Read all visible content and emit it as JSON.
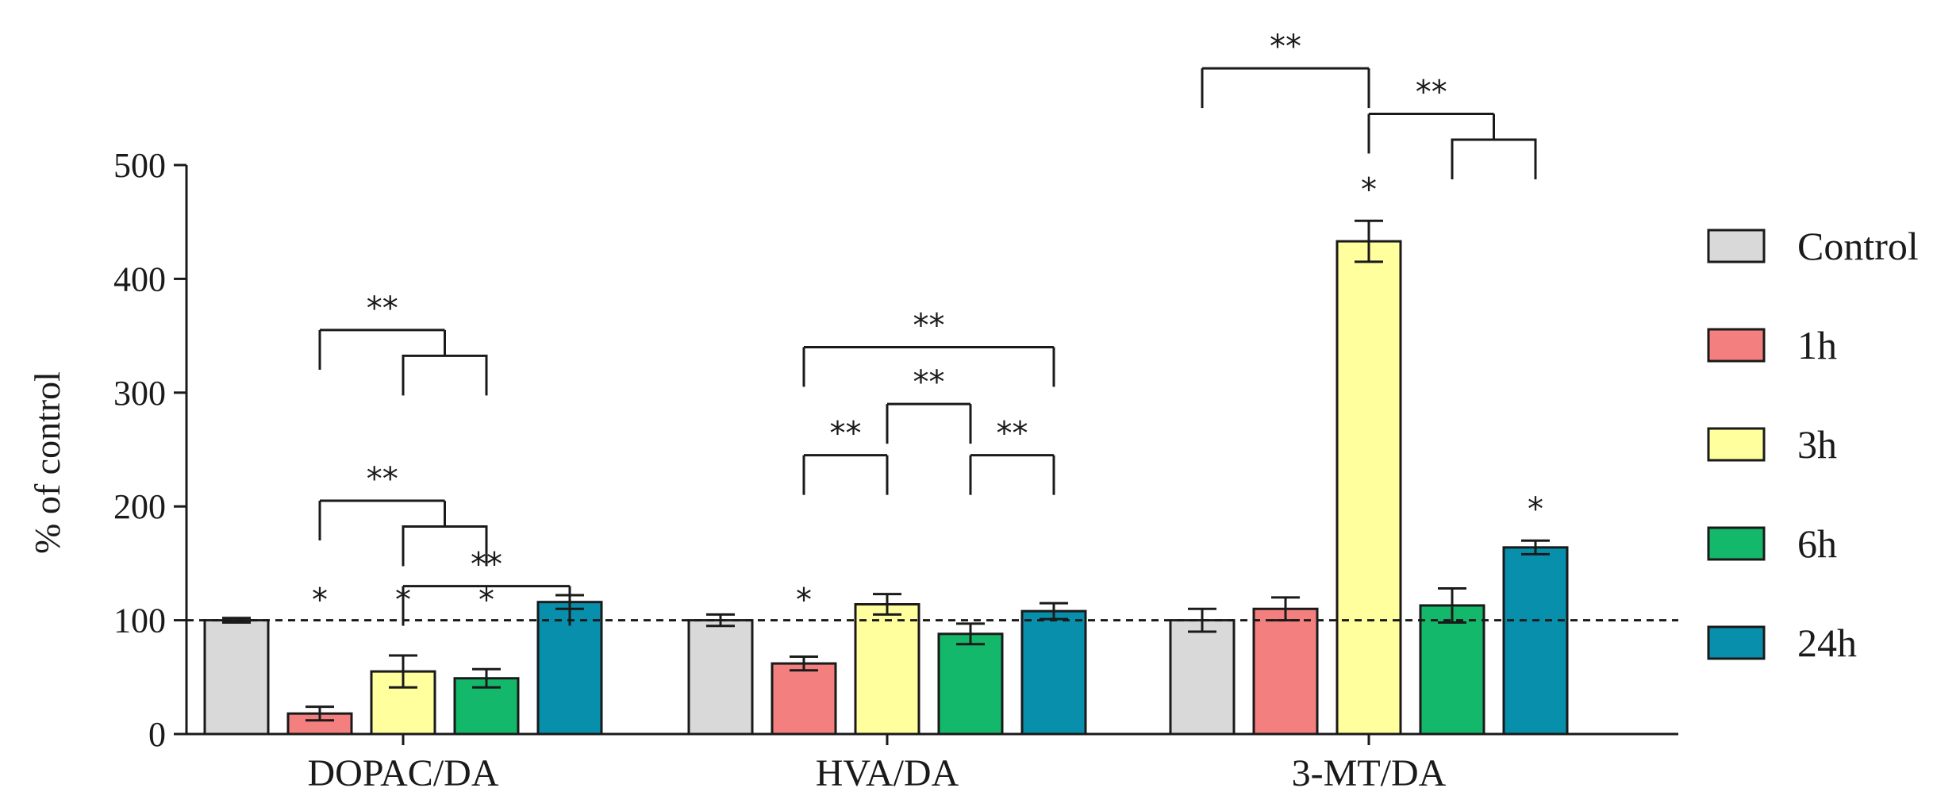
{
  "chart_data": {
    "type": "bar",
    "title": "",
    "xlabel": "",
    "ylabel": "% of control",
    "ylim": [
      0,
      500
    ],
    "yticks": [
      0,
      100,
      200,
      300,
      400,
      500
    ],
    "categories": [
      "DOPAC/DA",
      "HVA/DA",
      "3-MT/DA"
    ],
    "reference_line": 100,
    "series": [
      {
        "name": "Control",
        "color": "#d9d9d9",
        "values": [
          100,
          100,
          100
        ],
        "errors": [
          2,
          5,
          10
        ]
      },
      {
        "name": "1h",
        "color": "#f47f7f",
        "values": [
          18,
          62,
          110
        ],
        "errors": [
          6,
          6,
          10
        ]
      },
      {
        "name": "3h",
        "color": "#ffff9e",
        "values": [
          55,
          114,
          433
        ],
        "errors": [
          14,
          9,
          18
        ]
      },
      {
        "name": "6h",
        "color": "#14b86a",
        "values": [
          49,
          88,
          113
        ],
        "errors": [
          8,
          9,
          15
        ]
      },
      {
        "name": "24h",
        "color": "#078fab",
        "values": [
          116,
          108,
          164
        ],
        "errors": [
          6,
          7,
          6
        ]
      }
    ],
    "significance_marks": [
      {
        "category": 0,
        "series": 1,
        "label": "*"
      },
      {
        "category": 0,
        "series": 2,
        "label": "*"
      },
      {
        "category": 0,
        "series": 3,
        "label": "*"
      },
      {
        "category": 1,
        "series": 1,
        "label": "*"
      },
      {
        "category": 2,
        "series": 2,
        "label": "*"
      },
      {
        "category": 2,
        "series": 4,
        "label": "*"
      }
    ],
    "comparison_brackets": [
      {
        "category": 0,
        "left": [
          1
        ],
        "right": [
          2,
          3
        ],
        "level": 355,
        "label": "**"
      },
      {
        "category": 0,
        "left": [
          1
        ],
        "right": [
          2,
          3
        ],
        "level": 205,
        "label": "**"
      },
      {
        "category": 0,
        "left": [
          2
        ],
        "right": [
          4
        ],
        "level": 130,
        "label": "**"
      },
      {
        "category": 1,
        "left": [
          1
        ],
        "right": [
          4
        ],
        "level": 340,
        "label": "**"
      },
      {
        "category": 1,
        "left": [
          1
        ],
        "right": [
          2
        ],
        "level": 245,
        "label": "**"
      },
      {
        "category": 1,
        "left": [
          2
        ],
        "right": [
          3
        ],
        "level": 290,
        "label": "**"
      },
      {
        "category": 1,
        "left": [
          3
        ],
        "right": [
          4
        ],
        "level": 245,
        "label": "**"
      },
      {
        "category": 2,
        "left": [
          0
        ],
        "right": [
          2
        ],
        "level": 585,
        "label": "**"
      },
      {
        "category": 2,
        "left": [
          2
        ],
        "right": [
          3,
          4
        ],
        "level": 545,
        "label": "**"
      }
    ],
    "legend_position": "right"
  }
}
